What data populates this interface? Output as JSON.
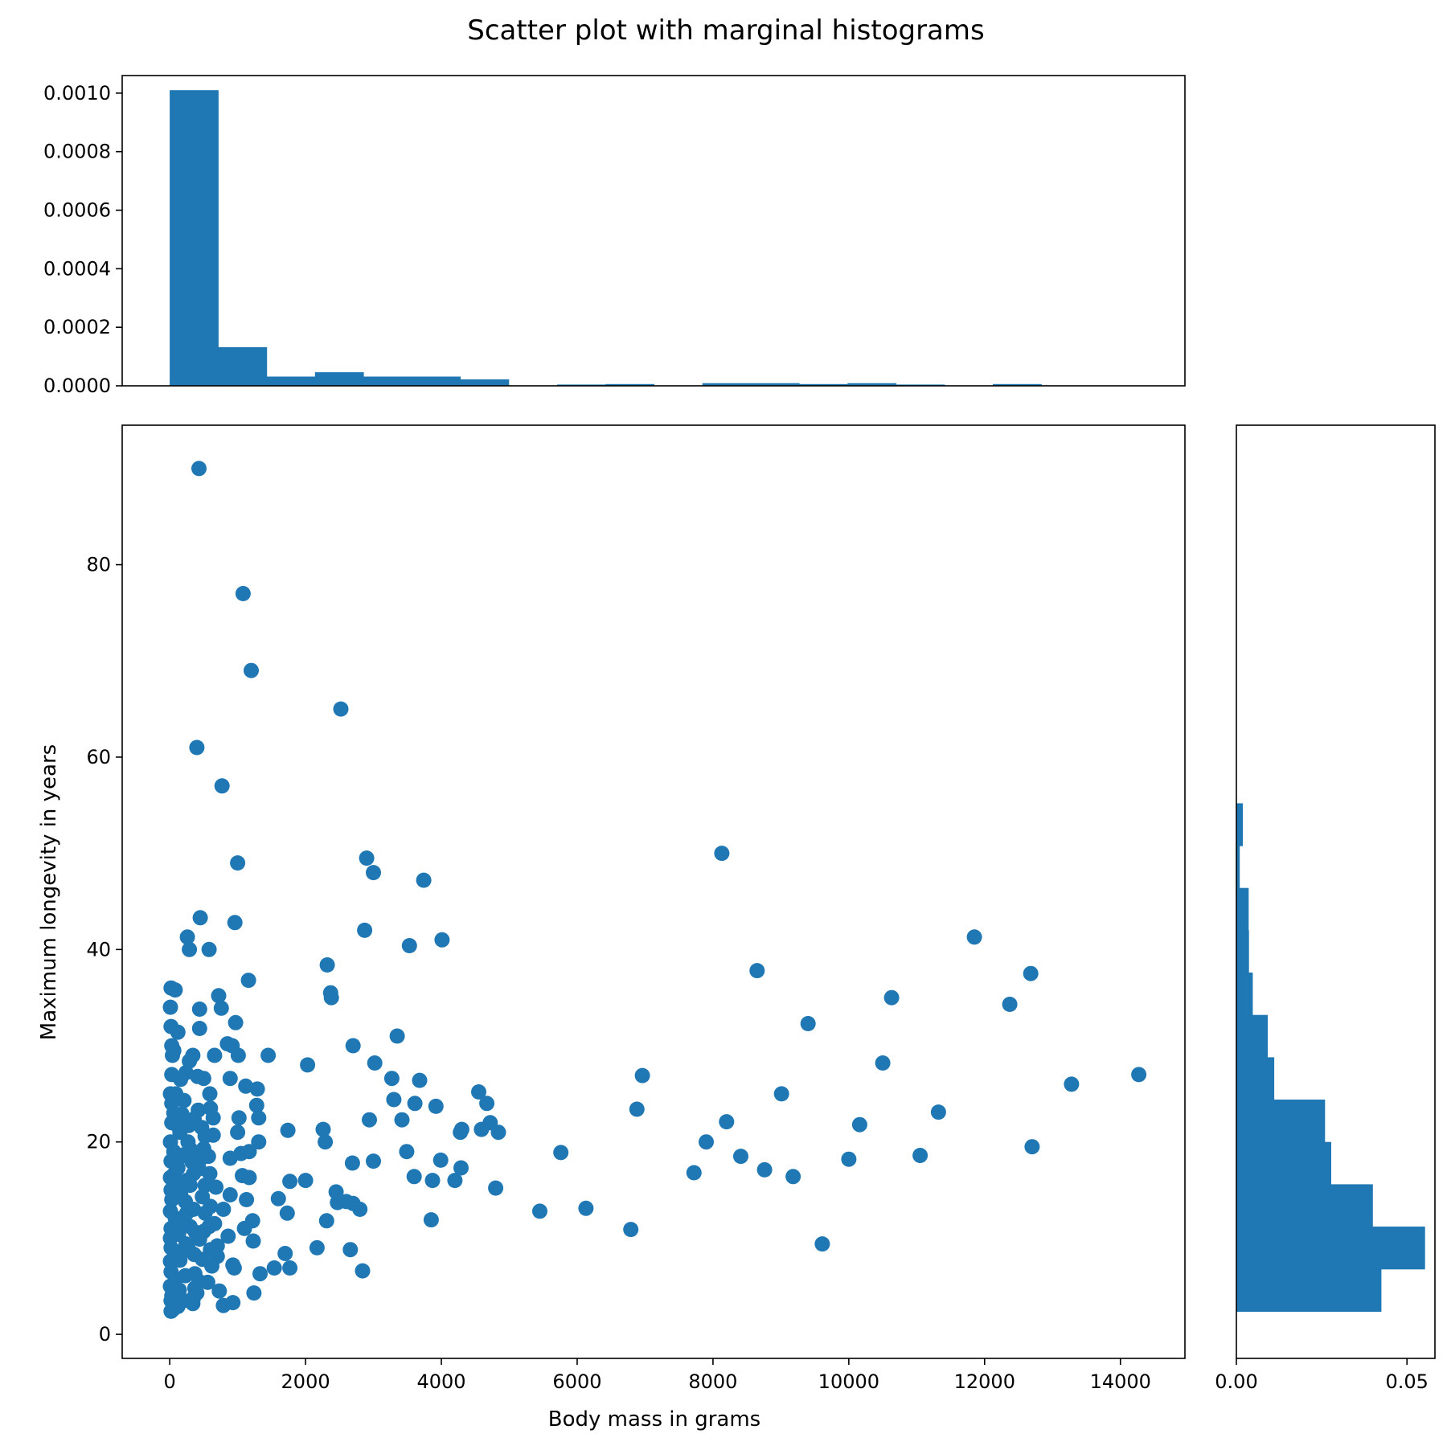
{
  "chart_data": {
    "type": "scatter",
    "title": "Scatter plot with marginal histograms",
    "colors": {
      "marks": "#1f77b4",
      "frame": "#000000"
    },
    "scatter": {
      "xlabel": "Body mass in grams",
      "ylabel": "Maximum longevity in years",
      "xlim": [
        -700,
        14950
      ],
      "ylim": [
        -2.5,
        94.5
      ],
      "xticks": [
        0,
        2000,
        4000,
        6000,
        8000,
        10000,
        12000,
        14000
      ],
      "yticks": [
        0,
        20,
        40,
        60,
        80
      ],
      "points": [
        [
          430,
          90
        ],
        [
          1080,
          77
        ],
        [
          1200,
          69
        ],
        [
          2520,
          65
        ],
        [
          400,
          61
        ],
        [
          770,
          57
        ],
        [
          1000,
          49
        ],
        [
          2900,
          49.5
        ],
        [
          3000,
          48
        ],
        [
          3740,
          47.2
        ],
        [
          8130,
          50
        ],
        [
          450,
          43.3
        ],
        [
          960,
          42.8
        ],
        [
          2870,
          42
        ],
        [
          260,
          41.3
        ],
        [
          290,
          40
        ],
        [
          580,
          40
        ],
        [
          3530,
          40.4
        ],
        [
          4010,
          41
        ],
        [
          11850,
          41.3
        ],
        [
          2320,
          38.4
        ],
        [
          8650,
          37.8
        ],
        [
          12680,
          37.5
        ],
        [
          1160,
          36.8
        ],
        [
          2370,
          35.5
        ],
        [
          2380,
          35
        ],
        [
          10630,
          35
        ],
        [
          720,
          35.2
        ],
        [
          12370,
          34.3
        ],
        [
          440,
          33.8
        ],
        [
          760,
          33.9
        ],
        [
          440,
          31.8
        ],
        [
          9400,
          32.3
        ],
        [
          3350,
          31
        ],
        [
          120,
          31.4
        ],
        [
          970,
          32.4
        ],
        [
          20,
          36
        ],
        [
          80,
          35.8
        ],
        [
          10,
          34
        ],
        [
          20,
          32
        ],
        [
          2700,
          30
        ],
        [
          850,
          30.2
        ],
        [
          920,
          30
        ],
        [
          30,
          30
        ],
        [
          60,
          29.5
        ],
        [
          40,
          29
        ],
        [
          340,
          29
        ],
        [
          660,
          29
        ],
        [
          1010,
          29
        ],
        [
          1450,
          29
        ],
        [
          2030,
          28
        ],
        [
          3020,
          28.2
        ],
        [
          10500,
          28.2
        ],
        [
          290,
          28.4
        ],
        [
          240,
          27.2
        ],
        [
          6960,
          26.9
        ],
        [
          14270,
          27
        ],
        [
          3270,
          26.6
        ],
        [
          3680,
          26.4
        ],
        [
          13280,
          26
        ],
        [
          500,
          26.6
        ],
        [
          890,
          26.6
        ],
        [
          1120,
          25.8
        ],
        [
          1290,
          25.5
        ],
        [
          160,
          26.5
        ],
        [
          10,
          25
        ],
        [
          90,
          25
        ],
        [
          4550,
          25.2
        ],
        [
          9010,
          25
        ],
        [
          3300,
          24.4
        ],
        [
          3610,
          24
        ],
        [
          3920,
          23.7
        ],
        [
          4670,
          24
        ],
        [
          1280,
          23.8
        ],
        [
          30,
          24
        ],
        [
          6880,
          23.4
        ],
        [
          11320,
          23.1
        ],
        [
          1310,
          22.5
        ],
        [
          2940,
          22.3
        ],
        [
          3420,
          22.3
        ],
        [
          4720,
          22
        ],
        [
          8200,
          22.1
        ],
        [
          10160,
          21.8
        ],
        [
          1020,
          22.5
        ],
        [
          4280,
          21
        ],
        [
          4300,
          21.3
        ],
        [
          4590,
          21.3
        ],
        [
          4840,
          21
        ],
        [
          640,
          22.5
        ],
        [
          1740,
          21.2
        ],
        [
          2260,
          21.3
        ],
        [
          1000,
          21
        ],
        [
          7900,
          20
        ],
        [
          2290,
          20
        ],
        [
          1310,
          20
        ],
        [
          3490,
          19
        ],
        [
          3990,
          18.1
        ],
        [
          5760,
          18.9
        ],
        [
          10000,
          18.2
        ],
        [
          11050,
          18.6
        ],
        [
          8410,
          18.5
        ],
        [
          12700,
          19.5
        ],
        [
          500,
          19.3
        ],
        [
          890,
          18.3
        ],
        [
          1050,
          18.8
        ],
        [
          1170,
          19
        ],
        [
          2690,
          17.8
        ],
        [
          3000,
          18
        ],
        [
          4290,
          17.3
        ],
        [
          4800,
          15.2
        ],
        [
          7720,
          16.8
        ],
        [
          8760,
          17.1
        ],
        [
          9180,
          16.4
        ],
        [
          3600,
          16.4
        ],
        [
          3870,
          16
        ],
        [
          4200,
          16
        ],
        [
          1770,
          15.9
        ],
        [
          2000,
          16
        ],
        [
          1070,
          16.5
        ],
        [
          1170,
          16.3
        ],
        [
          430,
          17.2
        ],
        [
          590,
          16.7
        ],
        [
          2450,
          14.8
        ],
        [
          1600,
          14.1
        ],
        [
          2470,
          13.7
        ],
        [
          2600,
          13.8
        ],
        [
          2700,
          13.6
        ],
        [
          2800,
          13
        ],
        [
          1730,
          12.6
        ],
        [
          1130,
          14
        ],
        [
          890,
          14.5
        ],
        [
          5450,
          12.8
        ],
        [
          6130,
          13.1
        ],
        [
          790,
          13
        ],
        [
          1220,
          11.8
        ],
        [
          2310,
          11.8
        ],
        [
          3850,
          11.9
        ],
        [
          6790,
          10.9
        ],
        [
          1100,
          11
        ],
        [
          860,
          10.2
        ],
        [
          1230,
          9.7
        ],
        [
          2170,
          9
        ],
        [
          2660,
          8.8
        ],
        [
          9610,
          9.4
        ],
        [
          1700,
          8.4
        ],
        [
          1540,
          6.9
        ],
        [
          1770,
          6.9
        ],
        [
          2840,
          6.6
        ],
        [
          1330,
          6.3
        ],
        [
          930,
          7.2
        ],
        [
          950,
          6.9
        ],
        [
          1240,
          4.3
        ],
        [
          730,
          4.5
        ],
        [
          620,
          7.1
        ],
        [
          790,
          3
        ],
        [
          930,
          3.3
        ],
        [
          340,
          3.2
        ],
        [
          120,
          2.9
        ],
        [
          20,
          2.4
        ],
        [
          50,
          2.6
        ],
        [
          430,
          5.5
        ],
        [
          370,
          6.3
        ],
        [
          280,
          8.8
        ],
        [
          600,
          8.8
        ],
        [
          700,
          8.1
        ],
        [
          380,
          10.6
        ],
        [
          580,
          11.2
        ],
        [
          250,
          12.6
        ],
        [
          600,
          13.3
        ],
        [
          480,
          14.3
        ],
        [
          300,
          15.5
        ],
        [
          520,
          15.5
        ],
        [
          350,
          16.7
        ],
        [
          440,
          18.1
        ],
        [
          640,
          20.7
        ],
        [
          520,
          20.6
        ],
        [
          280,
          21.7
        ],
        [
          420,
          23.3
        ],
        [
          600,
          23.5
        ],
        [
          310,
          19.2
        ],
        [
          180,
          22.9
        ],
        [
          100,
          21.8
        ],
        [
          30,
          22
        ],
        [
          10,
          20
        ],
        [
          20,
          18
        ],
        [
          10,
          16.3
        ],
        [
          20,
          15
        ],
        [
          30,
          14
        ],
        [
          10,
          12.8
        ],
        [
          20,
          11
        ],
        [
          10,
          10
        ],
        [
          20,
          9
        ],
        [
          10,
          7.6
        ],
        [
          20,
          6.5
        ],
        [
          10,
          5
        ],
        [
          30,
          4
        ],
        [
          20,
          3.5
        ],
        [
          60,
          19
        ],
        [
          60,
          16.6
        ],
        [
          80,
          12.1
        ],
        [
          80,
          8.6
        ],
        [
          90,
          5.8
        ],
        [
          150,
          21
        ],
        [
          150,
          18.4
        ],
        [
          160,
          14.6
        ],
        [
          130,
          10.4
        ],
        [
          150,
          7.7
        ],
        [
          140,
          4.6
        ],
        [
          220,
          18.7
        ],
        [
          230,
          13.8
        ],
        [
          240,
          9.4
        ],
        [
          230,
          6.1
        ],
        [
          200,
          3.5
        ],
        [
          360,
          22.4
        ],
        [
          330,
          17.9
        ],
        [
          350,
          13
        ],
        [
          360,
          8.3
        ],
        [
          370,
          4.8
        ],
        [
          480,
          7.8
        ],
        [
          500,
          10.7
        ],
        [
          680,
          15.3
        ],
        [
          660,
          11.5
        ],
        [
          560,
          5.4
        ],
        [
          470,
          21.5
        ],
        [
          590,
          25
        ],
        [
          570,
          18.5
        ],
        [
          700,
          9.2
        ],
        [
          30,
          27
        ],
        [
          60,
          23
        ],
        [
          50,
          14.8
        ],
        [
          110,
          15.9
        ],
        [
          190,
          11.6
        ],
        [
          120,
          17.3
        ],
        [
          270,
          20
        ],
        [
          250,
          16
        ],
        [
          300,
          11.2
        ],
        [
          440,
          9.9
        ],
        [
          210,
          24.3
        ],
        [
          410,
          26.8
        ],
        [
          520,
          12.6
        ],
        [
          400,
          4.3
        ],
        [
          350,
          3.8
        ]
      ]
    },
    "top_hist": {
      "yticks": [
        0.0,
        0.0002,
        0.0004,
        0.0006,
        0.0008,
        0.001
      ],
      "ytick_labels": [
        "0.0000",
        "0.0002",
        "0.0004",
        "0.0006",
        "0.0008",
        "0.0010"
      ],
      "ylim": [
        0,
        0.00106
      ],
      "bin_width": 713,
      "bin_edges_start": 0,
      "values": [
        0.00101,
        0.000132,
        3.15e-05,
        4.65e-05,
        3.15e-05,
        3.15e-05,
        2.2e-05,
        0.0,
        4.5e-06,
        6e-06,
        0.0,
        9e-06,
        9e-06,
        6e-06,
        9e-06,
        4.5e-06,
        0.0,
        6e-06,
        0.0,
        0.0
      ]
    },
    "right_hist": {
      "xticks": [
        0.0,
        0.05
      ],
      "xtick_labels": [
        "0.00",
        "0.05"
      ],
      "xlim": [
        0,
        0.0582
      ],
      "bin_width": 4.4,
      "bin_edges_start": 2.4,
      "values": [
        0.0425,
        0.0553,
        0.04,
        0.0278,
        0.026,
        0.0111,
        0.0092,
        0.0048,
        0.0037,
        0.0036,
        0.001,
        0.0019
      ]
    }
  }
}
